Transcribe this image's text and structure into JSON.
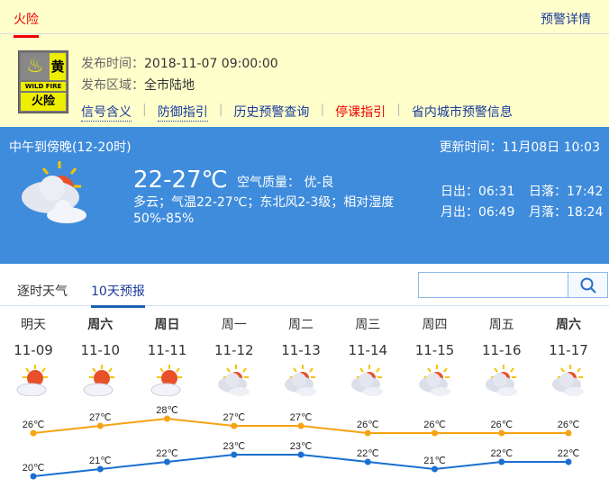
{
  "tabs": {
    "active": "火险",
    "detail": "预警详情"
  },
  "warning": {
    "sign": {
      "level": "黄",
      "en": "WILD FIRE",
      "cn": "火险"
    },
    "time_label": "发布时间：",
    "time": "2018-11-07 09:00:00",
    "area_label": "发布区域：",
    "area": "全市陆地",
    "links": [
      "信号含义",
      "防御指引",
      "历史预警查询",
      "停课指引",
      "省内城市预警信息"
    ]
  },
  "now": {
    "period": "中午到傍晚(12-20时)",
    "updated": "更新时间：11月08日 10:03",
    "temp": "22-27℃",
    "aq": "空气质量： 优-良",
    "desc": "多云；气温22-27℃；东北风2-3级；相对湿度50%-85%",
    "sunrise": "日出：06:31",
    "sunset": "日落：17:42",
    "moonrise": "月出：06:49",
    "moonset": "月落：18:24",
    "icon": "partly-cloudy-icon"
  },
  "forecast_tabs": [
    "逐时天气",
    "10天预报"
  ],
  "search": {
    "placeholder": ""
  },
  "colors": {
    "high": "#f5a313",
    "low": "#1a6fd0",
    "banner": "#3f8cdc",
    "accent": "#e00000"
  },
  "days": [
    {
      "wd": "明天",
      "date": "11-09",
      "hi": 26,
      "lo": 20,
      "icon": "sunny-cloudy",
      "bold": false,
      "hi_label": "26℃",
      "lo_label": "20℃"
    },
    {
      "wd": "周六",
      "date": "11-10",
      "hi": 27,
      "lo": 21,
      "icon": "sunny-cloudy",
      "bold": true,
      "hi_label": "27℃",
      "lo_label": "21℃"
    },
    {
      "wd": "周日",
      "date": "11-11",
      "hi": 28,
      "lo": 22,
      "icon": "sunny-cloudy",
      "bold": true,
      "hi_label": "28℃",
      "lo_label": "22℃"
    },
    {
      "wd": "周一",
      "date": "11-12",
      "hi": 27,
      "lo": 23,
      "icon": "cloudy",
      "bold": false,
      "hi_label": "27℃",
      "lo_label": "23℃"
    },
    {
      "wd": "周二",
      "date": "11-13",
      "hi": 27,
      "lo": 23,
      "icon": "cloudy",
      "bold": false,
      "hi_label": "27℃",
      "lo_label": "23℃"
    },
    {
      "wd": "周三",
      "date": "11-14",
      "hi": 26,
      "lo": 22,
      "icon": "cloudy",
      "bold": false,
      "hi_label": "26℃",
      "lo_label": "22℃"
    },
    {
      "wd": "周四",
      "date": "11-15",
      "hi": 26,
      "lo": 21,
      "icon": "cloudy",
      "bold": false,
      "hi_label": "26℃",
      "lo_label": "21℃"
    },
    {
      "wd": "周五",
      "date": "11-16",
      "hi": 26,
      "lo": 22,
      "icon": "cloudy",
      "bold": false,
      "hi_label": "26℃",
      "lo_label": "22℃"
    },
    {
      "wd": "周六",
      "date": "11-17",
      "hi": 26,
      "lo": 22,
      "icon": "cloudy",
      "bold": true,
      "hi_label": "26℃",
      "lo_label": "22℃"
    }
  ]
}
